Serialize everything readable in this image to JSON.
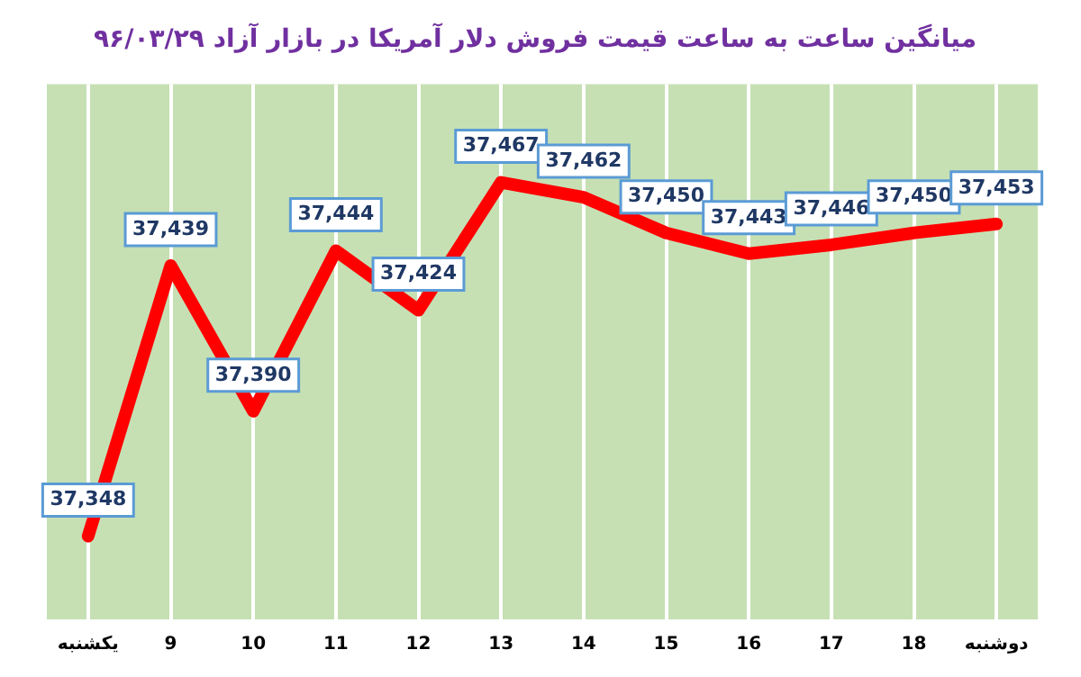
{
  "chart_data": {
    "type": "line",
    "title": "میانگین ساعت به ساعت قیمت فروش دلار آمریکا در بازار آزاد ۹۶/۰۳/۲۹",
    "categories": [
      "یکشنبه",
      "9",
      "10",
      "11",
      "12",
      "13",
      "14",
      "15",
      "16",
      "17",
      "18",
      "دوشنبه"
    ],
    "series": [
      {
        "color": "#ff0000",
        "values": [
          37348,
          37439,
          37390,
          37444,
          37424,
          37467,
          37462,
          37450,
          37443,
          37446,
          37450,
          37453
        ],
        "value_labels": [
          "37,348",
          "37,439",
          "37,390",
          "37,444",
          "37,424",
          "37,467",
          "37,462",
          "37,450",
          "37,443",
          "37,446",
          "37,450",
          "37,453"
        ]
      }
    ],
    "grid": "x",
    "legend": false,
    "line_style": "solid"
  }
}
